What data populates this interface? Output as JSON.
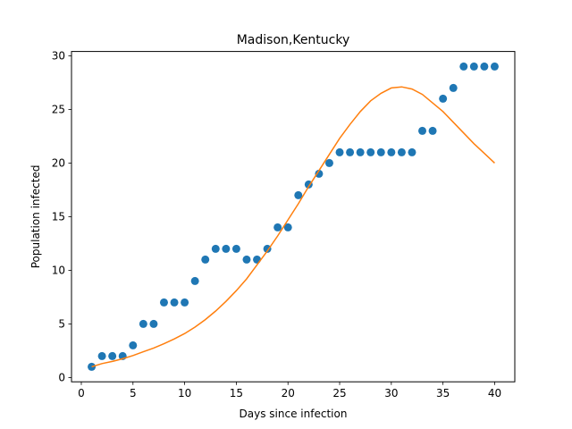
{
  "chart_data": {
    "type": "scatter",
    "title": "Madison,Kentucky",
    "xlabel": "Days since infection",
    "ylabel": "Population infected",
    "xlim": [
      -0.95,
      41.95
    ],
    "ylim": [
      -0.4,
      30.4
    ],
    "xticks": [
      0,
      5,
      10,
      15,
      20,
      25,
      30,
      35,
      40
    ],
    "yticks": [
      0,
      5,
      10,
      15,
      20,
      25,
      30
    ],
    "grid": false,
    "legend": "none",
    "series": [
      {
        "kind": "scatter",
        "color": "#1f77b4",
        "x": [
          1,
          2,
          3,
          4,
          5,
          6,
          7,
          8,
          9,
          10,
          11,
          12,
          13,
          14,
          15,
          16,
          17,
          18,
          19,
          20,
          21,
          22,
          23,
          24,
          25,
          26,
          27,
          28,
          29,
          30,
          31,
          32,
          33,
          34,
          35,
          36,
          37,
          38,
          39,
          40
        ],
        "y": [
          1,
          2,
          2,
          2,
          3,
          5,
          5,
          7,
          7,
          7,
          9,
          11,
          12,
          12,
          12,
          11,
          11,
          12,
          14,
          14,
          17,
          18,
          19,
          20,
          21,
          21,
          21,
          21,
          21,
          21,
          21,
          21,
          23,
          23,
          26,
          27,
          29,
          29,
          29,
          29
        ]
      },
      {
        "kind": "line",
        "color": "#ff7f0e",
        "x": [
          1,
          2,
          3,
          4,
          5,
          6,
          7,
          8,
          9,
          10,
          11,
          12,
          13,
          14,
          15,
          16,
          17,
          18,
          19,
          20,
          21,
          22,
          23,
          24,
          25,
          26,
          27,
          28,
          29,
          30,
          31,
          32,
          33,
          34,
          35,
          36,
          37,
          38,
          39,
          40
        ],
        "y": [
          1.0,
          1.3,
          1.5,
          1.75,
          2.05,
          2.4,
          2.75,
          3.15,
          3.6,
          4.1,
          4.7,
          5.4,
          6.2,
          7.1,
          8.1,
          9.2,
          10.5,
          11.8,
          13.2,
          14.7,
          16.2,
          17.8,
          19.3,
          20.8,
          22.3,
          23.6,
          24.8,
          25.8,
          26.5,
          27.0,
          27.1,
          26.9,
          26.4,
          25.6,
          24.8,
          23.8,
          22.8,
          21.8,
          20.9,
          20.0
        ]
      }
    ]
  }
}
